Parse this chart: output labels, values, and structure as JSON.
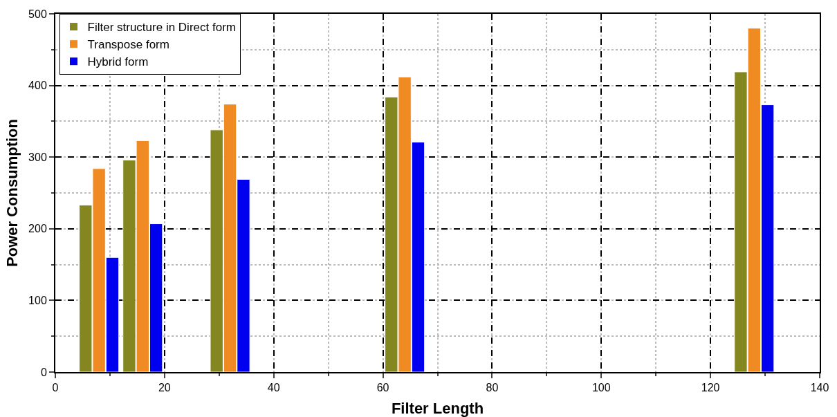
{
  "chart_data": {
    "type": "bar",
    "xlabel": "Filter Length",
    "ylabel": "Power Consumption",
    "x": [
      8,
      16,
      32,
      64,
      128
    ],
    "series": [
      {
        "name": "Filter structure in Direct form",
        "color": "#848620",
        "values": [
          233,
          296,
          338,
          384,
          419
        ]
      },
      {
        "name": "Transpose form",
        "color": "#f08a22",
        "values": [
          284,
          323,
          374,
          412,
          480
        ]
      },
      {
        "name": "Hybrid form",
        "color": "#0000f0",
        "values": [
          160,
          207,
          269,
          321,
          373
        ]
      }
    ],
    "xlim": [
      0,
      140
    ],
    "xticks": [
      0,
      20,
      40,
      60,
      80,
      100,
      120,
      140
    ],
    "ylim": [
      0,
      500
    ],
    "yticks": [
      0,
      100,
      200,
      300,
      400,
      500
    ],
    "grid": true,
    "legend": "top left"
  }
}
